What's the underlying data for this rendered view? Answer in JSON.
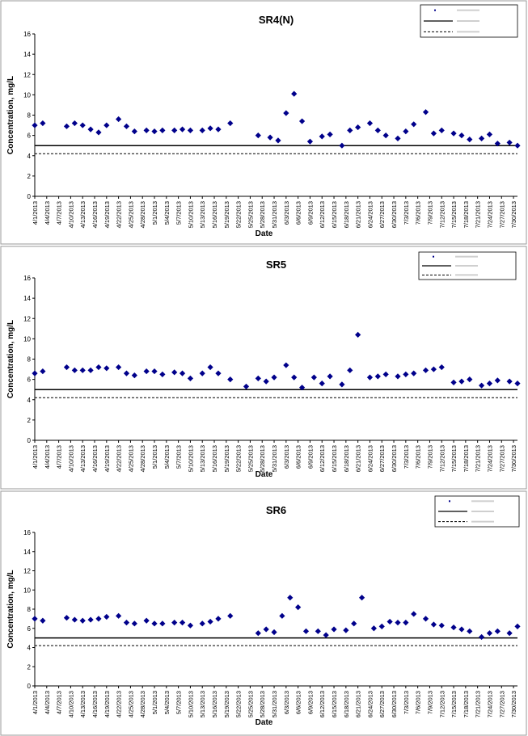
{
  "chart_data": [
    {
      "type": "scatter",
      "title": "SR4(N)",
      "xlabel": "Date",
      "ylabel": "Concentration, mg/L",
      "ylim": [
        0,
        16
      ],
      "y_ticks": [
        0,
        2,
        4,
        6,
        8,
        10,
        12,
        14,
        16
      ],
      "x_tick_labels": [
        "4/1/2013",
        "4/4/2013",
        "4/7/2013",
        "4/10/2013",
        "4/13/2013",
        "4/16/2013",
        "4/19/2013",
        "4/22/2013",
        "4/25/2013",
        "4/28/2013",
        "5/1/2013",
        "5/4/2013",
        "5/7/2013",
        "5/10/2013",
        "5/13/2013",
        "5/16/2013",
        "5/19/2013",
        "5/22/2013",
        "5/25/2013",
        "5/28/2013",
        "5/31/2013",
        "6/3/2013",
        "6/6/2013",
        "6/9/2013",
        "6/12/2013",
        "6/15/2013",
        "6/18/2013",
        "6/21/2013",
        "6/24/2013",
        "6/27/2013",
        "6/30/2013",
        "7/3/2013",
        "7/6/2013",
        "7/9/2013",
        "7/12/2013",
        "7/15/2013",
        "7/18/2013",
        "7/21/2013",
        "7/24/2013",
        "7/27/2013",
        "7/30/2013"
      ],
      "reference_lines": [
        {
          "style": "solid",
          "value": 5.0
        },
        {
          "style": "dashed",
          "value": 4.2
        }
      ],
      "legend_position": "top-right",
      "series": [
        {
          "color": "#00008b",
          "marker": "diamond",
          "x": [
            "4/1/2013",
            "4/3/2013",
            "4/9/2013",
            "4/11/2013",
            "4/13/2013",
            "4/15/2013",
            "4/17/2013",
            "4/19/2013",
            "4/22/2013",
            "4/24/2013",
            "4/26/2013",
            "4/29/2013",
            "5/1/2013",
            "5/3/2013",
            "5/6/2013",
            "5/8/2013",
            "5/10/2013",
            "5/13/2013",
            "5/15/2013",
            "5/17/2013",
            "5/20/2013",
            "5/27/2013",
            "5/30/2013",
            "6/1/2013",
            "6/3/2013",
            "6/5/2013",
            "6/7/2013",
            "6/9/2013",
            "6/12/2013",
            "6/14/2013",
            "6/17/2013",
            "6/19/2013",
            "6/21/2013",
            "6/24/2013",
            "6/26/2013",
            "6/28/2013",
            "7/1/2013",
            "7/3/2013",
            "7/5/2013",
            "7/8/2013",
            "7/10/2013",
            "7/12/2013",
            "7/15/2013",
            "7/17/2013",
            "7/19/2013",
            "7/22/2013",
            "7/24/2013",
            "7/26/2013",
            "7/29/2013",
            "7/31/2013"
          ],
          "y": [
            7.0,
            7.2,
            6.9,
            7.2,
            7.0,
            6.6,
            6.3,
            7.0,
            7.6,
            6.9,
            6.4,
            6.5,
            6.4,
            6.5,
            6.5,
            6.6,
            6.5,
            6.5,
            6.7,
            6.6,
            7.2,
            6.0,
            5.8,
            5.5,
            8.2,
            10.1,
            7.4,
            5.4,
            5.9,
            6.1,
            5.0,
            6.5,
            6.8,
            7.2,
            6.5,
            6.0,
            5.7,
            6.4,
            7.1,
            8.3,
            6.2,
            6.5,
            6.2,
            6.0,
            5.6,
            5.7,
            6.1,
            5.2,
            5.3,
            5.0
          ]
        }
      ]
    },
    {
      "type": "scatter",
      "title": "SR5",
      "xlabel": "Date",
      "ylabel": "Concentration, mg/L",
      "ylim": [
        0,
        16
      ],
      "y_ticks": [
        0,
        2,
        4,
        6,
        8,
        10,
        12,
        14,
        16
      ],
      "x_tick_labels": [
        "4/1/2013",
        "4/4/2013",
        "4/7/2013",
        "4/10/2013",
        "4/13/2013",
        "4/16/2013",
        "4/19/2013",
        "4/22/2013",
        "4/25/2013",
        "4/28/2013",
        "5/1/2013",
        "5/4/2013",
        "5/7/2013",
        "5/10/2013",
        "5/13/2013",
        "5/16/2013",
        "5/19/2013",
        "5/22/2013",
        "5/25/2013",
        "5/28/2013",
        "5/31/2013",
        "6/3/2013",
        "6/6/2013",
        "6/9/2013",
        "6/12/2013",
        "6/15/2013",
        "6/18/2013",
        "6/21/2013",
        "6/24/2013",
        "6/27/2013",
        "6/30/2013",
        "7/3/2013",
        "7/6/2013",
        "7/9/2013",
        "7/12/2013",
        "7/15/2013",
        "7/18/2013",
        "7/21/2013",
        "7/24/2013",
        "7/27/2013",
        "7/30/2013"
      ],
      "reference_lines": [
        {
          "style": "solid",
          "value": 5.0
        },
        {
          "style": "dashed",
          "value": 4.2
        }
      ],
      "legend_position": "top-right",
      "series": [
        {
          "color": "#00008b",
          "marker": "diamond",
          "x": [
            "4/1/2013",
            "4/3/2013",
            "4/9/2013",
            "4/11/2013",
            "4/13/2013",
            "4/15/2013",
            "4/17/2013",
            "4/19/2013",
            "4/22/2013",
            "4/24/2013",
            "4/26/2013",
            "4/29/2013",
            "5/1/2013",
            "5/3/2013",
            "5/6/2013",
            "5/8/2013",
            "5/10/2013",
            "5/13/2013",
            "5/15/2013",
            "5/17/2013",
            "5/20/2013",
            "5/24/2013",
            "5/27/2013",
            "5/29/2013",
            "5/31/2013",
            "6/3/2013",
            "6/5/2013",
            "6/7/2013",
            "6/10/2013",
            "6/12/2013",
            "6/14/2013",
            "6/17/2013",
            "6/19/2013",
            "6/21/2013",
            "6/24/2013",
            "6/26/2013",
            "6/28/2013",
            "7/1/2013",
            "7/3/2013",
            "7/5/2013",
            "7/8/2013",
            "7/10/2013",
            "7/12/2013",
            "7/15/2013",
            "7/17/2013",
            "7/19/2013",
            "7/22/2013",
            "7/24/2013",
            "7/26/2013",
            "7/29/2013",
            "7/31/2013"
          ],
          "y": [
            6.6,
            6.8,
            7.2,
            6.9,
            6.9,
            6.9,
            7.2,
            7.1,
            7.2,
            6.6,
            6.4,
            6.8,
            6.8,
            6.5,
            6.7,
            6.6,
            6.1,
            6.6,
            7.2,
            6.6,
            6.0,
            5.3,
            6.1,
            5.8,
            6.2,
            7.4,
            6.2,
            5.2,
            6.2,
            5.6,
            6.3,
            5.5,
            6.9,
            10.4,
            6.2,
            6.3,
            6.5,
            6.3,
            6.5,
            6.6,
            6.9,
            7.0,
            7.2,
            5.7,
            5.8,
            6.0,
            5.4,
            5.6,
            5.9,
            5.8,
            5.6
          ]
        }
      ]
    },
    {
      "type": "scatter",
      "title": "SR6",
      "xlabel": "Date",
      "ylabel": "Concentration, mg/L",
      "ylim": [
        0,
        16
      ],
      "y_ticks": [
        0,
        2,
        4,
        6,
        8,
        10,
        12,
        14,
        16
      ],
      "x_tick_labels": [
        "4/1/2013",
        "4/4/2013",
        "4/7/2013",
        "4/10/2013",
        "4/13/2013",
        "4/16/2013",
        "4/19/2013",
        "4/22/2013",
        "4/25/2013",
        "4/28/2013",
        "5/1/2013",
        "5/4/2013",
        "5/7/2013",
        "5/10/2013",
        "5/13/2013",
        "5/16/2013",
        "5/19/2013",
        "5/22/2013",
        "5/25/2013",
        "5/28/2013",
        "5/31/2013",
        "6/3/2013",
        "6/6/2013",
        "6/9/2013",
        "6/12/2013",
        "6/15/2013",
        "6/18/2013",
        "6/21/2013",
        "6/24/2013",
        "6/27/2013",
        "6/30/2013",
        "7/3/2013",
        "7/6/2013",
        "7/9/2013",
        "7/12/2013",
        "7/15/2013",
        "7/18/2013",
        "7/21/2013",
        "7/24/2013",
        "7/27/2013",
        "7/30/2013"
      ],
      "reference_lines": [
        {
          "style": "solid",
          "value": 5.0
        },
        {
          "style": "dashed",
          "value": 4.2
        }
      ],
      "legend_position": "top-right",
      "series": [
        {
          "color": "#00008b",
          "marker": "diamond",
          "x": [
            "4/1/2013",
            "4/3/2013",
            "4/9/2013",
            "4/11/2013",
            "4/13/2013",
            "4/15/2013",
            "4/17/2013",
            "4/19/2013",
            "4/22/2013",
            "4/24/2013",
            "4/26/2013",
            "4/29/2013",
            "5/1/2013",
            "5/3/2013",
            "5/6/2013",
            "5/8/2013",
            "5/10/2013",
            "5/13/2013",
            "5/15/2013",
            "5/17/2013",
            "5/20/2013",
            "5/27/2013",
            "5/29/2013",
            "5/31/2013",
            "6/2/2013",
            "6/4/2013",
            "6/6/2013",
            "6/8/2013",
            "6/11/2013",
            "6/13/2013",
            "6/15/2013",
            "6/18/2013",
            "6/20/2013",
            "6/22/2013",
            "6/25/2013",
            "6/27/2013",
            "6/29/2013",
            "7/1/2013",
            "7/3/2013",
            "7/5/2013",
            "7/8/2013",
            "7/10/2013",
            "7/12/2013",
            "7/15/2013",
            "7/17/2013",
            "7/19/2013",
            "7/22/2013",
            "7/24/2013",
            "7/26/2013",
            "7/29/2013",
            "7/31/2013"
          ],
          "y": [
            7.0,
            6.8,
            7.1,
            6.9,
            6.8,
            6.9,
            7.0,
            7.2,
            7.3,
            6.6,
            6.5,
            6.8,
            6.5,
            6.5,
            6.6,
            6.6,
            6.3,
            6.5,
            6.7,
            7.0,
            7.3,
            5.5,
            5.9,
            5.6,
            7.3,
            9.2,
            8.2,
            5.7,
            5.7,
            5.3,
            5.9,
            5.8,
            6.5,
            9.2,
            6.0,
            6.2,
            6.7,
            6.6,
            6.6,
            7.5,
            7.0,
            6.4,
            6.3,
            6.1,
            5.9,
            5.7,
            5.1,
            5.5,
            5.7,
            5.5,
            6.2
          ]
        }
      ]
    }
  ]
}
